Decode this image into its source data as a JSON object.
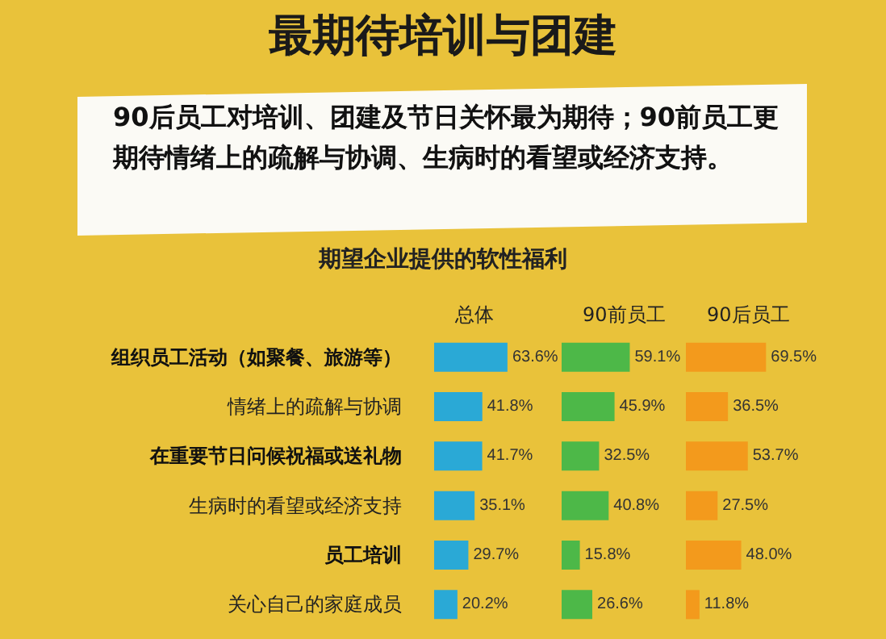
{
  "chart_data": [
    {
      "type": "bar",
      "orientation": "horizontal",
      "title": "最期待培训与团建",
      "subtitle": "90后员工对培训、团建及节日关怀最为期待；90前员工更期待情绪上的疏解与协调、生病时的看望或经济支持。",
      "annotations": [
        "期望企业提供的软性福利"
      ],
      "tick_labels": "y",
      "categories": [
        "组织员工活动（如聚餐、旅游等）",
        "情绪上的疏解与协调",
        "在重要节日问候祝福或送礼物",
        "生病时的看望或经济支持",
        "员工培训",
        "关心自己的家庭成员"
      ],
      "series": [
        {
          "name": "总体",
          "color": "#2aa9d6",
          "values": [
            63.6,
            41.8,
            41.7,
            35.1,
            29.7,
            20.2
          ],
          "value_labels": [
            "63.6%",
            "41.8%",
            "41.7%",
            "35.1%",
            "29.7%",
            "20.2%"
          ]
        }
      ]
    },
    {
      "type": "bar",
      "orientation": "horizontal",
      "tick_labels": false,
      "categories": [
        null,
        null,
        null,
        null,
        null,
        null
      ],
      "series": [
        {
          "name": "90前员工",
          "color": "#4db848",
          "values": [
            59.1,
            45.9,
            32.5,
            40.8,
            15.8,
            26.6
          ],
          "value_labels": [
            "59.1%",
            "45.9%",
            "32.5%",
            "40.8%",
            "15.8%",
            "26.6%"
          ]
        }
      ]
    },
    {
      "type": "bar",
      "orientation": "horizontal",
      "tick_labels": false,
      "categories": [
        null,
        null,
        null,
        null,
        null,
        null
      ],
      "series": [
        {
          "name": "90后员工",
          "color": "#f39a1c",
          "values": [
            69.5,
            36.5,
            53.7,
            27.5,
            48.0,
            11.8
          ],
          "value_labels": [
            "69.5%",
            "36.5%",
            "53.7%",
            "27.5%",
            "48.0%",
            "11.8%"
          ]
        }
      ]
    }
  ]
}
